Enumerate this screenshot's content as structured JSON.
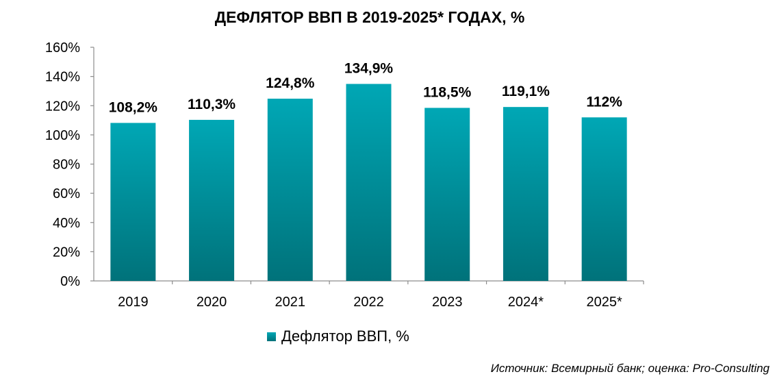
{
  "colors": {
    "bar_top": "#00a7b5",
    "bar_bottom": "#00727a",
    "axis": "#8c8c8c"
  },
  "source_note": "Источник: Всемирный банк; оценка: Pro-Consulting",
  "chart_data": {
    "type": "bar",
    "title": "ДЕФЛЯТОР ВВП В 2019-2025* ГОДАХ, %",
    "categories": [
      "2019",
      "2020",
      "2021",
      "2022",
      "2023",
      "2024*",
      "2025*"
    ],
    "series": [
      {
        "name": "Дефлятор ВВП, %",
        "values": [
          108.2,
          110.3,
          124.8,
          134.9,
          118.5,
          119.1,
          112
        ],
        "data_labels": [
          "108,2%",
          "110,3%",
          "124,8%",
          "134,9%",
          "118,5%",
          "119,1%",
          "112%"
        ]
      }
    ],
    "ylim": [
      0,
      160
    ],
    "yticks": [
      0,
      20,
      40,
      60,
      80,
      100,
      120,
      140,
      160
    ],
    "ytick_labels": [
      "0%",
      "20%",
      "40%",
      "60%",
      "80%",
      "100%",
      "120%",
      "140%",
      "160%"
    ],
    "xlabel": "",
    "ylabel": "",
    "grid": false,
    "legend_position": "bottom"
  }
}
